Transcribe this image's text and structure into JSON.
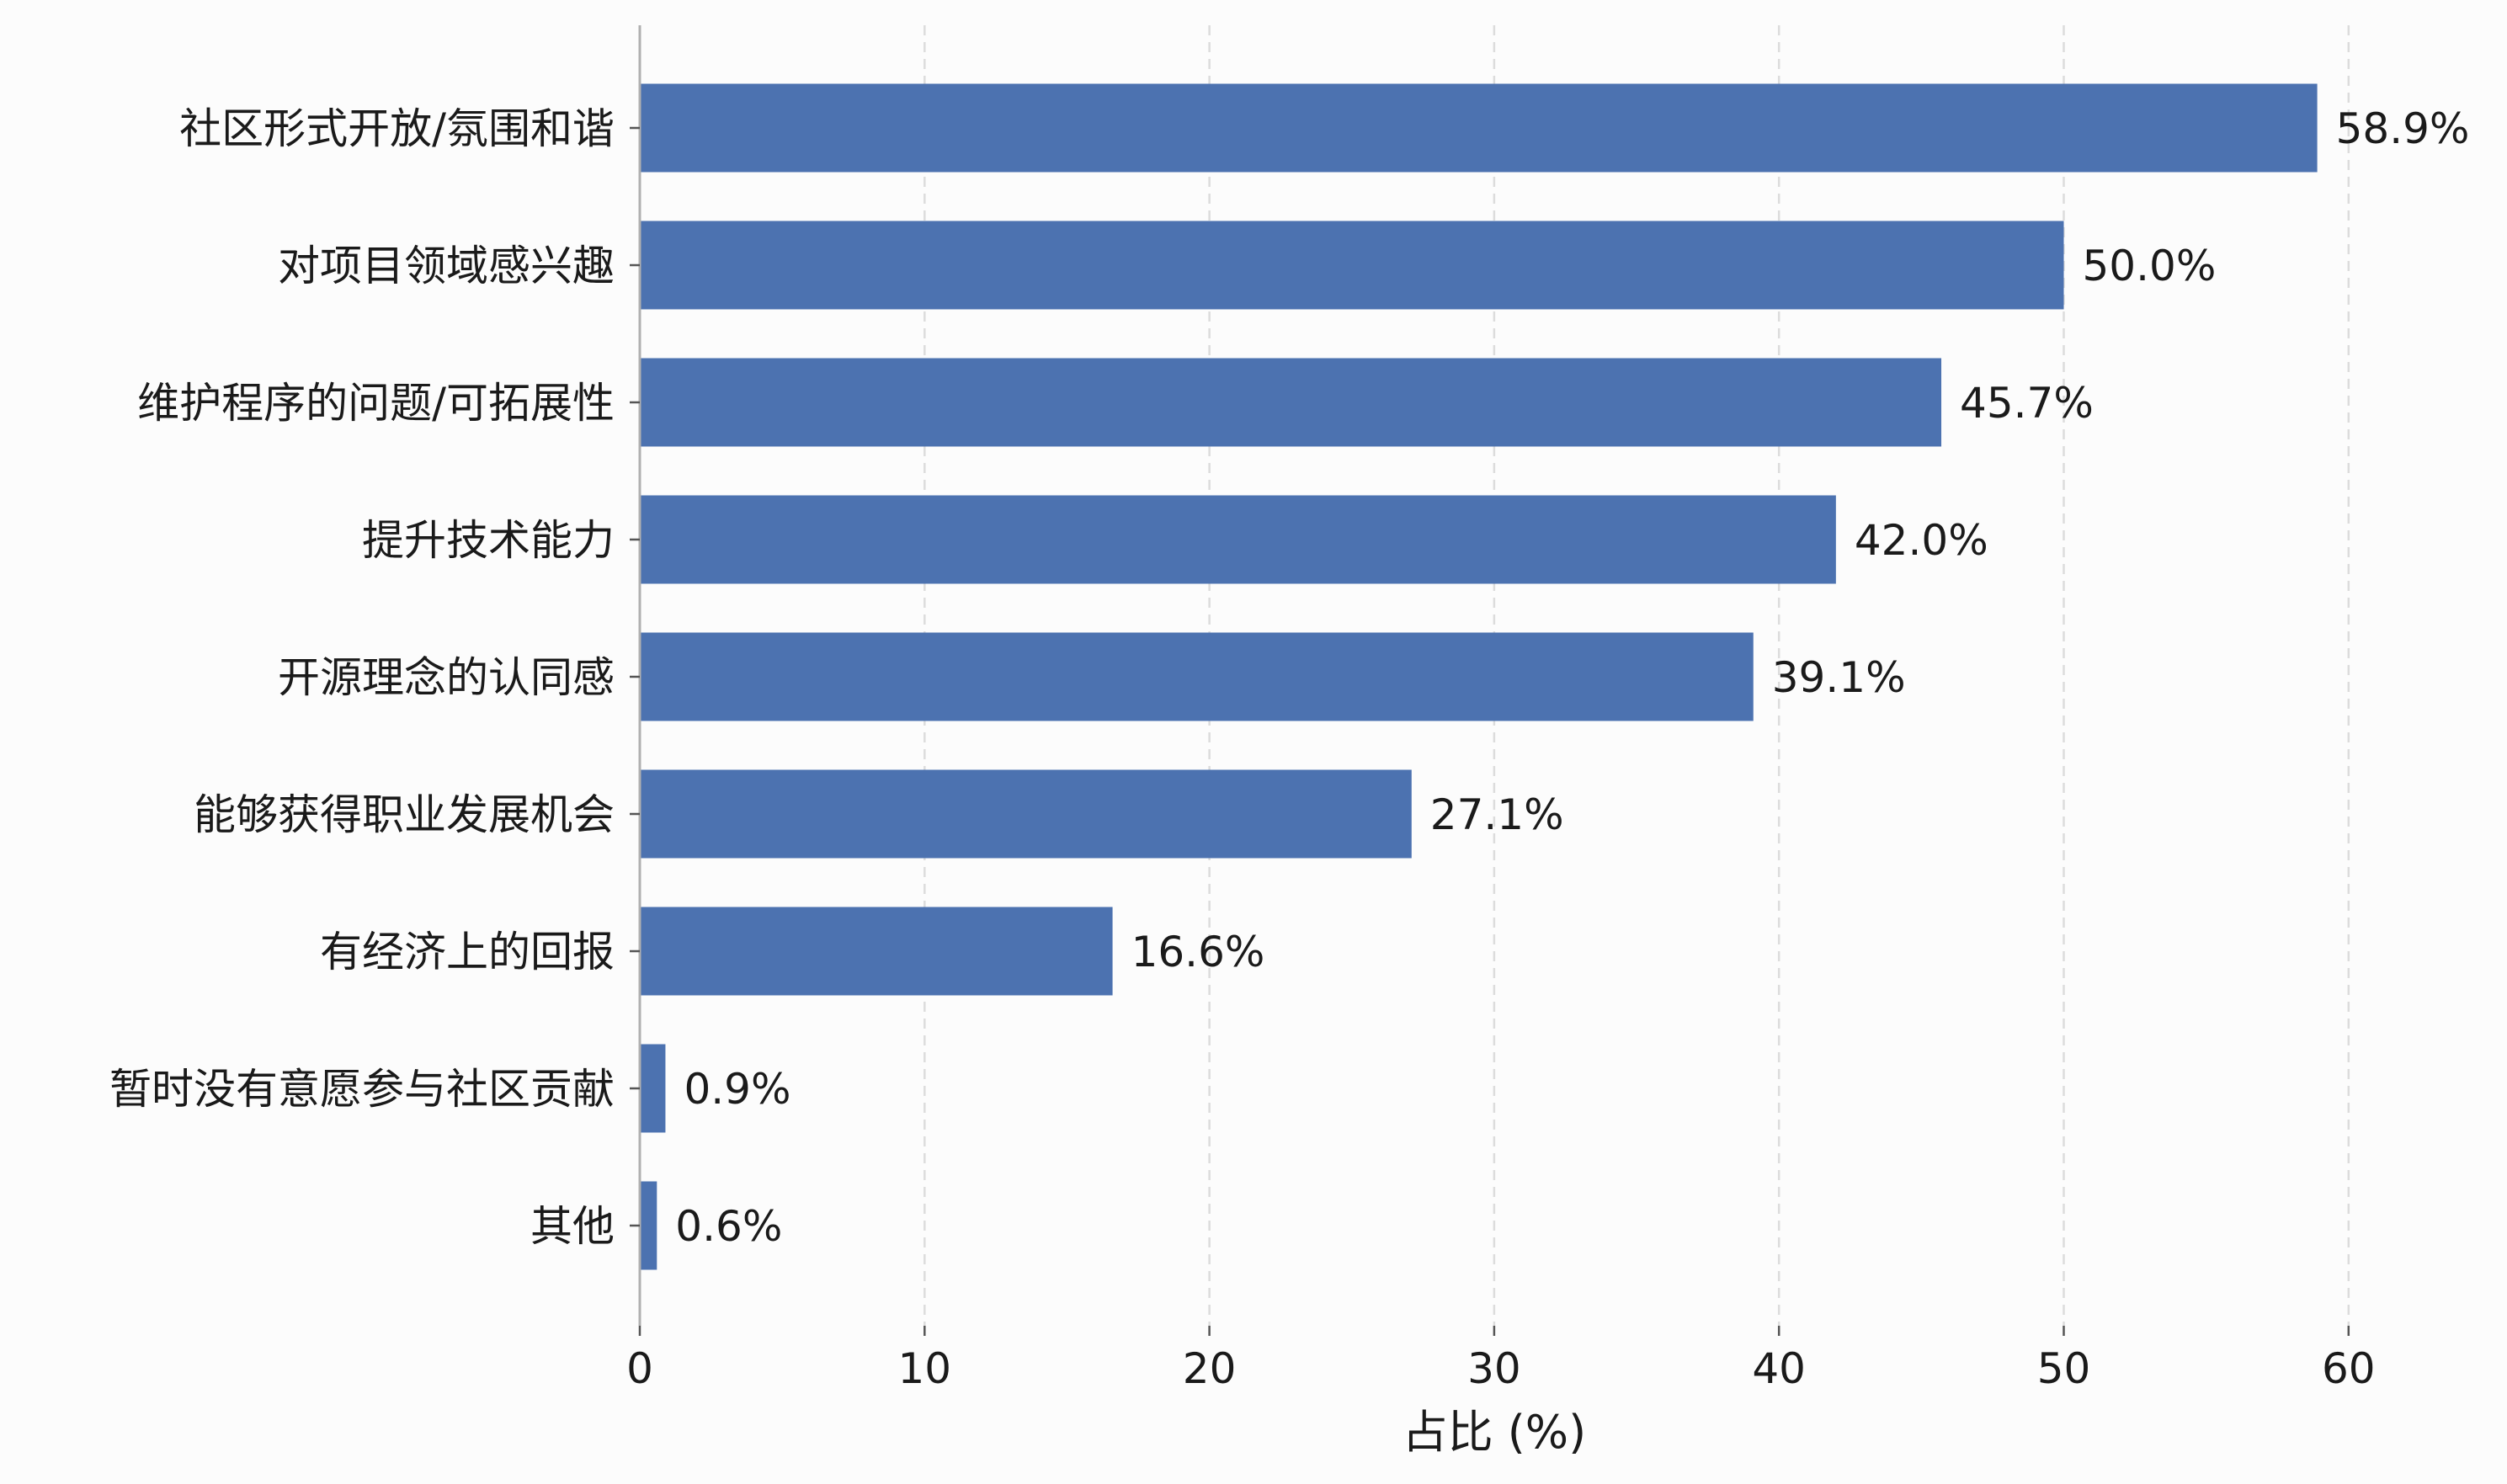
{
  "chart_data": {
    "type": "bar",
    "orientation": "horizontal",
    "categories": [
      "社区形式开放/氛围和谐",
      "对项目领域感兴趣",
      "维护程序的问题/可拓展性",
      "提升技术能力",
      "开源理念的认同感",
      "能够获得职业发展机会",
      "有经济上的回报",
      "暂时没有意愿参与社区贡献",
      "其他"
    ],
    "values": [
      58.9,
      50.0,
      45.7,
      42.0,
      39.1,
      27.1,
      16.6,
      0.9,
      0.6
    ],
    "value_labels": [
      "58.9%",
      "50.0%",
      "45.7%",
      "42.0%",
      "39.1%",
      "27.1%",
      "16.6%",
      "0.9%",
      "0.6%"
    ],
    "xlabel": "占比 (%)",
    "ylabel": "",
    "title": "",
    "xlim": [
      0,
      60
    ],
    "xticks": [
      "0",
      "10",
      "20",
      "30",
      "40",
      "50",
      "60"
    ],
    "grid": "vertical-dashed",
    "legend": "none",
    "bar_color": "#4c72b0"
  }
}
